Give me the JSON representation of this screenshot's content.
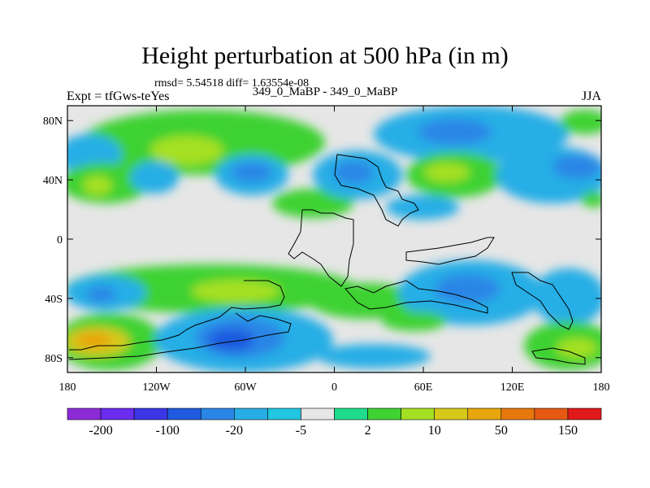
{
  "title": "Height perturbation at 500 hPa (in m)",
  "stats": "rmsd= 5.54518  diff= 1.63554e-08",
  "runs": "349_0_MaBP - 349_0_MaBP",
  "experiment": "Expt = tfGws-teYes",
  "season": "JJA",
  "chart_data": {
    "type": "heatmap",
    "title": "Height perturbation at 500 hPa (in m)",
    "x_range": [
      -180,
      180
    ],
    "y_range": [
      -90,
      90
    ],
    "x_ticks": [
      {
        "value": -180,
        "label": "180"
      },
      {
        "value": -120,
        "label": "120W"
      },
      {
        "value": -60,
        "label": "60W"
      },
      {
        "value": 0,
        "label": "0"
      },
      {
        "value": 60,
        "label": "60E"
      },
      {
        "value": 120,
        "label": "120E"
      },
      {
        "value": 180,
        "label": "180"
      }
    ],
    "y_ticks": [
      {
        "value": 80,
        "label": "80N"
      },
      {
        "value": 40,
        "label": "40N"
      },
      {
        "value": 0,
        "label": "0"
      },
      {
        "value": -40,
        "label": "40S"
      },
      {
        "value": -80,
        "label": "80S"
      }
    ],
    "colorbar": {
      "colors": [
        "#8c2bd8",
        "#6a2df0",
        "#3a36e6",
        "#1f5ae0",
        "#2a86e6",
        "#28aee6",
        "#21c6e0",
        "#e6e6e6",
        "#1fdc8c",
        "#3ed233",
        "#a6e024",
        "#d6c91a",
        "#e8a60c",
        "#e8780c",
        "#e65a14",
        "#e01a1a"
      ],
      "labels": [
        {
          "boundary": 1,
          "label": "-200"
        },
        {
          "boundary": 3,
          "label": "-100"
        },
        {
          "boundary": 5,
          "label": "-20"
        },
        {
          "boundary": 7,
          "label": "-5"
        },
        {
          "boundary": 9,
          "label": "2"
        },
        {
          "boundary": 11,
          "label": "10"
        },
        {
          "boundary": 13,
          "label": "50"
        },
        {
          "boundary": 15,
          "label": "150"
        }
      ]
    },
    "anomalies": [
      {
        "lon": -40,
        "lat": 60,
        "level": 10
      },
      {
        "lon": -85,
        "lat": 55,
        "level": 10
      },
      {
        "lon": -170,
        "lat": 60,
        "level": -5
      },
      {
        "lon": -165,
        "lat": 35,
        "level": 10
      },
      {
        "lon": -110,
        "lat": 40,
        "level": -5
      },
      {
        "lon": -45,
        "lat": 40,
        "level": -5
      },
      {
        "lon": 10,
        "lat": 40,
        "level": -20
      },
      {
        "lon": 80,
        "lat": 70,
        "level": -20
      },
      {
        "lon": 80,
        "lat": 40,
        "level": 10
      },
      {
        "lon": 150,
        "lat": 40,
        "level": -5
      },
      {
        "lon": -90,
        "lat": -50,
        "level": 10
      },
      {
        "lon": -150,
        "lat": -50,
        "level": -5
      },
      {
        "lon": -80,
        "lat": -75,
        "level": -20
      },
      {
        "lon": -160,
        "lat": -75,
        "level": 50
      },
      {
        "lon": 100,
        "lat": -55,
        "level": -20
      },
      {
        "lon": 150,
        "lat": -75,
        "level": 10
      }
    ]
  }
}
